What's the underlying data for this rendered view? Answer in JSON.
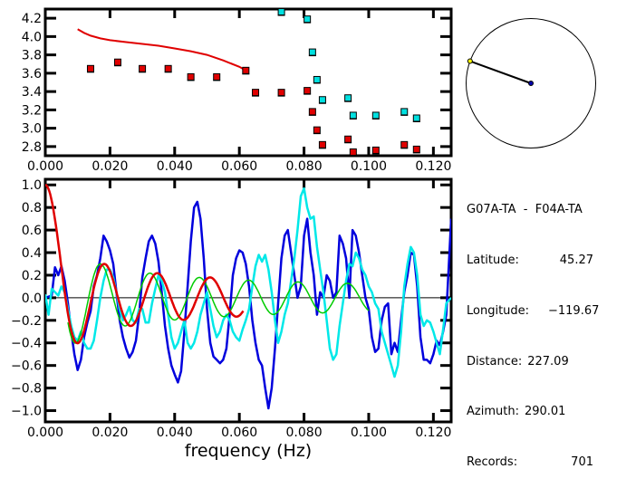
{
  "chart_data": [
    {
      "type": "scatter",
      "title": "",
      "xlabel": "",
      "ylabel": "",
      "xlim": [
        0.0,
        0.1255
      ],
      "ylim": [
        2.7,
        4.3
      ],
      "xticks": [
        "0.000",
        "0.020",
        "0.040",
        "0.060",
        "0.080",
        "0.100",
        "0.120"
      ],
      "xtick_values": [
        0.0,
        0.02,
        0.04,
        0.06,
        0.08,
        0.1,
        0.12
      ],
      "yticks": [
        "2.8",
        "3.0",
        "3.2",
        "3.4",
        "3.6",
        "3.8",
        "4.0",
        "4.2"
      ],
      "ytick_values": [
        2.8,
        3.0,
        3.2,
        3.4,
        3.6,
        3.8,
        4.0,
        4.2
      ],
      "grid": false,
      "series": [
        {
          "name": "dispersion-curve",
          "kind": "line",
          "color": "#e00000",
          "x": [
            0.01,
            0.012,
            0.014,
            0.017,
            0.02,
            0.025,
            0.03,
            0.035,
            0.04,
            0.045,
            0.05,
            0.055,
            0.06,
            0.062
          ],
          "y": [
            4.08,
            4.04,
            4.01,
            3.98,
            3.96,
            3.94,
            3.92,
            3.9,
            3.87,
            3.84,
            3.8,
            3.74,
            3.67,
            3.63
          ]
        },
        {
          "name": "measured-red",
          "kind": "markers",
          "color": "#e00000",
          "x": [
            0.014,
            0.0224,
            0.03,
            0.038,
            0.045,
            0.053,
            0.062,
            0.065,
            0.073,
            0.081,
            0.0826,
            0.084,
            0.0857,
            0.0936,
            0.0952,
            0.1022,
            0.111,
            0.1148
          ],
          "y": [
            3.65,
            3.72,
            3.65,
            3.65,
            3.56,
            3.56,
            3.63,
            3.39,
            3.39,
            3.41,
            3.18,
            2.98,
            2.82,
            2.88,
            2.74,
            2.76,
            2.82,
            2.77
          ]
        },
        {
          "name": "measured-cyan",
          "kind": "markers",
          "color": "#00e0e0",
          "x": [
            0.073,
            0.081,
            0.0826,
            0.084,
            0.0857,
            0.0936,
            0.0952,
            0.1022,
            0.111,
            0.1148
          ],
          "y": [
            4.27,
            4.19,
            3.83,
            3.53,
            3.31,
            3.33,
            3.14,
            3.14,
            3.18,
            3.11
          ]
        }
      ]
    },
    {
      "type": "line",
      "title": "",
      "xlabel": "frequency (Hz)",
      "ylabel": "",
      "xlim": [
        0.0,
        0.1255
      ],
      "ylim": [
        -1.1,
        1.05
      ],
      "xticks": [
        "0.000",
        "0.020",
        "0.040",
        "0.060",
        "0.080",
        "0.100",
        "0.120"
      ],
      "xtick_values": [
        0.0,
        0.02,
        0.04,
        0.06,
        0.08,
        0.1,
        0.12
      ],
      "yticks": [
        "1.0",
        "0.8",
        "0.6",
        "0.4",
        "0.2",
        "0.0",
        "−0.2",
        "−0.4",
        "−0.6",
        "−0.8",
        "−1.0"
      ],
      "ytick_values": [
        1.0,
        0.8,
        0.6,
        0.4,
        0.2,
        0.0,
        -0.2,
        -0.4,
        -0.6,
        -0.8,
        -1.0
      ],
      "grid": false,
      "zero_line": true,
      "series": [
        {
          "name": "observed-real",
          "color": "#0000dd",
          "x": [
            0.0,
            0.002,
            0.003,
            0.004,
            0.005,
            0.006,
            0.007,
            0.008,
            0.009,
            0.01,
            0.011,
            0.012,
            0.013,
            0.014,
            0.015,
            0.016,
            0.017,
            0.018,
            0.019,
            0.02,
            0.021,
            0.022,
            0.023,
            0.024,
            0.025,
            0.026,
            0.027,
            0.028,
            0.029,
            0.03,
            0.031,
            0.032,
            0.033,
            0.034,
            0.035,
            0.036,
            0.037,
            0.038,
            0.039,
            0.04,
            0.041,
            0.042,
            0.043,
            0.044,
            0.045,
            0.046,
            0.047,
            0.048,
            0.049,
            0.05,
            0.051,
            0.052,
            0.053,
            0.054,
            0.055,
            0.056,
            0.057,
            0.058,
            0.059,
            0.06,
            0.061,
            0.062,
            0.063,
            0.064,
            0.065,
            0.066,
            0.067,
            0.068,
            0.069,
            0.07,
            0.071,
            0.072,
            0.073,
            0.074,
            0.075,
            0.076,
            0.077,
            0.078,
            0.079,
            0.08,
            0.081,
            0.082,
            0.083,
            0.084,
            0.085,
            0.086,
            0.087,
            0.088,
            0.089,
            0.09,
            0.091,
            0.092,
            0.093,
            0.094,
            0.095,
            0.096,
            0.097,
            0.098,
            0.099,
            0.1,
            0.101,
            0.102,
            0.103,
            0.104,
            0.105,
            0.106,
            0.107,
            0.108,
            0.109,
            0.11,
            0.111,
            0.112,
            0.113,
            0.114,
            0.115,
            0.116,
            0.117,
            0.118,
            0.119,
            0.12,
            0.121,
            0.122,
            0.123,
            0.124,
            0.1255
          ],
          "y": [
            0.0,
            0.02,
            0.27,
            0.2,
            0.28,
            0.15,
            -0.05,
            -0.3,
            -0.5,
            -0.64,
            -0.55,
            -0.35,
            -0.22,
            -0.12,
            0.1,
            0.2,
            0.35,
            0.55,
            0.5,
            0.42,
            0.3,
            0.05,
            -0.2,
            -0.35,
            -0.45,
            -0.53,
            -0.48,
            -0.38,
            -0.15,
            0.18,
            0.35,
            0.5,
            0.55,
            0.48,
            0.32,
            0.05,
            -0.25,
            -0.45,
            -0.6,
            -0.68,
            -0.75,
            -0.65,
            -0.3,
            0.1,
            0.5,
            0.8,
            0.85,
            0.7,
            0.35,
            -0.1,
            -0.4,
            -0.52,
            -0.55,
            -0.58,
            -0.55,
            -0.45,
            -0.15,
            0.2,
            0.35,
            0.42,
            0.4,
            0.3,
            0.1,
            -0.2,
            -0.4,
            -0.55,
            -0.6,
            -0.8,
            -0.98,
            -0.8,
            -0.45,
            -0.05,
            0.35,
            0.55,
            0.6,
            0.4,
            0.2,
            0.0,
            0.1,
            0.55,
            0.7,
            0.4,
            0.2,
            -0.15,
            0.05,
            0.0,
            0.2,
            0.15,
            0.0,
            0.05,
            0.55,
            0.48,
            0.35,
            0.0,
            0.6,
            0.55,
            0.4,
            0.2,
            0.0,
            -0.1,
            -0.35,
            -0.48,
            -0.45,
            -0.2,
            -0.08,
            -0.05,
            -0.5,
            -0.4,
            -0.48,
            -0.2,
            0.05,
            0.2,
            0.4,
            0.38,
            0.1,
            -0.35,
            -0.55,
            -0.55,
            -0.58,
            -0.5,
            -0.38,
            -0.42,
            -0.3,
            -0.15,
            0.7
          ]
        },
        {
          "name": "observed-imag",
          "color": "#00e8e8",
          "x": [
            0.0,
            0.001,
            0.002,
            0.003,
            0.004,
            0.005,
            0.006,
            0.007,
            0.008,
            0.009,
            0.01,
            0.011,
            0.012,
            0.013,
            0.014,
            0.015,
            0.016,
            0.017,
            0.018,
            0.019,
            0.02,
            0.021,
            0.022,
            0.023,
            0.024,
            0.025,
            0.026,
            0.027,
            0.028,
            0.029,
            0.03,
            0.031,
            0.032,
            0.033,
            0.034,
            0.035,
            0.036,
            0.037,
            0.038,
            0.039,
            0.04,
            0.041,
            0.042,
            0.043,
            0.044,
            0.045,
            0.046,
            0.047,
            0.048,
            0.049,
            0.05,
            0.051,
            0.052,
            0.053,
            0.054,
            0.055,
            0.056,
            0.057,
            0.058,
            0.059,
            0.06,
            0.061,
            0.062,
            0.063,
            0.064,
            0.065,
            0.066,
            0.067,
            0.068,
            0.069,
            0.07,
            0.071,
            0.072,
            0.073,
            0.074,
            0.075,
            0.076,
            0.077,
            0.078,
            0.079,
            0.08,
            0.081,
            0.082,
            0.083,
            0.084,
            0.085,
            0.086,
            0.087,
            0.088,
            0.089,
            0.09,
            0.091,
            0.092,
            0.093,
            0.094,
            0.095,
            0.096,
            0.097,
            0.098,
            0.099,
            0.1,
            0.101,
            0.102,
            0.103,
            0.104,
            0.105,
            0.106,
            0.107,
            0.108,
            0.109,
            0.11,
            0.111,
            0.112,
            0.113,
            0.114,
            0.115,
            0.116,
            0.117,
            0.118,
            0.119,
            0.12,
            0.121,
            0.122,
            0.123,
            0.124,
            0.1255
          ],
          "y": [
            0.03,
            -0.15,
            0.08,
            0.05,
            0.02,
            0.1,
            0.05,
            -0.1,
            -0.25,
            -0.35,
            -0.38,
            -0.3,
            -0.4,
            -0.45,
            -0.45,
            -0.38,
            -0.2,
            0.0,
            0.15,
            0.25,
            0.25,
            0.18,
            0.05,
            -0.1,
            -0.2,
            -0.15,
            -0.08,
            -0.2,
            -0.22,
            -0.1,
            -0.1,
            -0.22,
            -0.22,
            -0.05,
            0.08,
            0.2,
            0.15,
            0.05,
            -0.15,
            -0.35,
            -0.45,
            -0.4,
            -0.3,
            -0.2,
            -0.4,
            -0.45,
            -0.4,
            -0.3,
            -0.15,
            -0.05,
            0.05,
            -0.1,
            -0.25,
            -0.35,
            -0.3,
            -0.2,
            -0.15,
            -0.2,
            -0.3,
            -0.35,
            -0.38,
            -0.28,
            -0.2,
            -0.1,
            0.1,
            0.28,
            0.38,
            0.32,
            0.38,
            0.25,
            0.05,
            -0.2,
            -0.4,
            -0.3,
            -0.15,
            -0.05,
            0.15,
            0.35,
            0.6,
            0.9,
            0.97,
            0.8,
            0.7,
            0.72,
            0.45,
            0.25,
            0.05,
            -0.2,
            -0.45,
            -0.55,
            -0.5,
            -0.25,
            -0.05,
            0.15,
            0.3,
            0.28,
            0.4,
            0.35,
            0.25,
            0.2,
            0.1,
            0.05,
            -0.05,
            -0.1,
            -0.3,
            -0.4,
            -0.5,
            -0.6,
            -0.7,
            -0.6,
            -0.3,
            0.1,
            0.3,
            0.45,
            0.4,
            0.2,
            -0.15,
            -0.25,
            -0.2,
            -0.22,
            -0.3,
            -0.4,
            -0.5,
            -0.28,
            -0.05,
            0.0
          ]
        },
        {
          "name": "model-bessel-red",
          "color": "#e00000",
          "function": "j0",
          "scale": 1.0,
          "decay": "cos(w - pi/4)/sqrt",
          "x_range": [
            0.0,
            0.0615
          ],
          "note": "Bessel J0-shaped fit; period ~0.0165 Hz, first zero ~0.0055 Hz"
        },
        {
          "name": "model-bessel-green",
          "color": "#00cc00",
          "x_range": [
            0.007,
            0.1
          ],
          "note": "Bessel J0-shaped fit with slightly shorter period ~0.0153 Hz"
        }
      ]
    }
  ],
  "info_panel": {
    "station_pair": "G07A-TA  -  F04A-TA",
    "rows": [
      {
        "label": "Latitude:",
        "value": "45.27"
      },
      {
        "label": "Longitude:",
        "value": "−119.67"
      },
      {
        "label": "Distance:",
        "value": "227.09"
      },
      {
        "label": "Azimuth:",
        "value": "290.01"
      },
      {
        "label": "Records:",
        "value": "701"
      }
    ]
  },
  "azimuth_dial": {
    "azimuth_deg": 290.01,
    "center_color": "#0000aa",
    "end_color": "#ffff00"
  },
  "colors": {
    "red": "#e00000",
    "cyan": "#00e8e8",
    "blue": "#0000dd",
    "green": "#00cc00",
    "axis": "#000000"
  }
}
